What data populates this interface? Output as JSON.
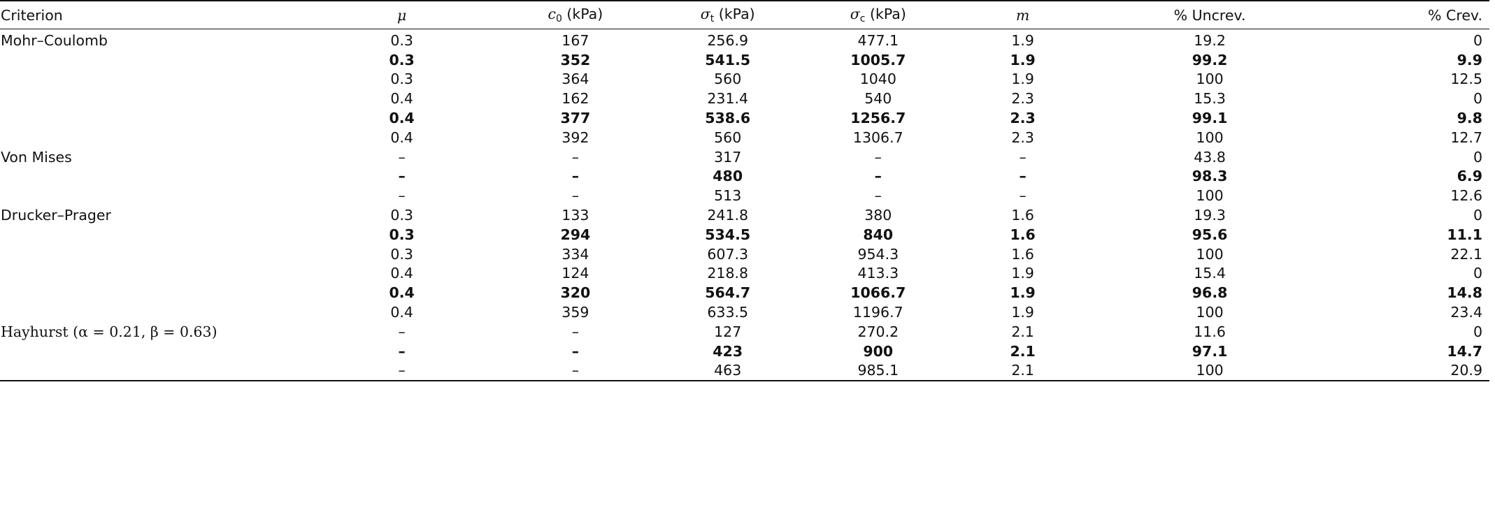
{
  "headers": {
    "criterion": "Criterion",
    "mu": "μ",
    "c0_sym": "c",
    "c0_sub": "0",
    "c0_unit": " (kPa)",
    "sigma_t_sym": "σ",
    "sigma_t_sub": "t",
    "sigma_t_unit": " (kPa)",
    "sigma_c_sym": "σ",
    "sigma_c_sub": "c",
    "sigma_c_unit": " (kPa)",
    "m": "m",
    "uncrev": "% Uncrev.",
    "crev": "% Crev."
  },
  "rows": [
    {
      "criterion": "Mohr–Coulomb",
      "mu": "0.3",
      "c0": "167",
      "st": "256.9",
      "sc": "477.1",
      "m": "1.9",
      "unc": "19.2",
      "crev": "0",
      "bold": false
    },
    {
      "criterion": "",
      "mu": "0.3",
      "c0": "352",
      "st": "541.5",
      "sc": "1005.7",
      "m": "1.9",
      "unc": "99.2",
      "crev": "9.9",
      "bold": true
    },
    {
      "criterion": "",
      "mu": "0.3",
      "c0": "364",
      "st": "560",
      "sc": "1040",
      "m": "1.9",
      "unc": "100",
      "crev": "12.5",
      "bold": false
    },
    {
      "criterion": "",
      "mu": "0.4",
      "c0": "162",
      "st": "231.4",
      "sc": "540",
      "m": "2.3",
      "unc": "15.3",
      "crev": "0",
      "bold": false
    },
    {
      "criterion": "",
      "mu": "0.4",
      "c0": "377",
      "st": "538.6",
      "sc": "1256.7",
      "m": "2.3",
      "unc": "99.1",
      "crev": "9.8",
      "bold": true
    },
    {
      "criterion": "",
      "mu": "0.4",
      "c0": "392",
      "st": "560",
      "sc": "1306.7",
      "m": "2.3",
      "unc": "100",
      "crev": "12.7",
      "bold": false
    },
    {
      "criterion": "Von Mises",
      "mu": "–",
      "c0": "–",
      "st": "317",
      "sc": "–",
      "m": "–",
      "unc": "43.8",
      "crev": "0",
      "bold": false
    },
    {
      "criterion": "",
      "mu": "–",
      "c0": "–",
      "st": "480",
      "sc": "–",
      "m": "–",
      "unc": "98.3",
      "crev": "6.9",
      "bold": true
    },
    {
      "criterion": "",
      "mu": "–",
      "c0": "–",
      "st": "513",
      "sc": "–",
      "m": "–",
      "unc": "100",
      "crev": "12.6",
      "bold": false
    },
    {
      "criterion": "Drucker–Prager",
      "mu": "0.3",
      "c0": "133",
      "st": "241.8",
      "sc": "380",
      "m": "1.6",
      "unc": "19.3",
      "crev": "0",
      "bold": false
    },
    {
      "criterion": "",
      "mu": "0.3",
      "c0": "294",
      "st": "534.5",
      "sc": "840",
      "m": "1.6",
      "unc": "95.6",
      "crev": "11.1",
      "bold": true
    },
    {
      "criterion": "",
      "mu": "0.3",
      "c0": "334",
      "st": "607.3",
      "sc": "954.3",
      "m": "1.6",
      "unc": "100",
      "crev": "22.1",
      "bold": false
    },
    {
      "criterion": "",
      "mu": "0.4",
      "c0": "124",
      "st": "218.8",
      "sc": "413.3",
      "m": "1.9",
      "unc": "15.4",
      "crev": "0",
      "bold": false
    },
    {
      "criterion": "",
      "mu": "0.4",
      "c0": "320",
      "st": "564.7",
      "sc": "1066.7",
      "m": "1.9",
      "unc": "96.8",
      "crev": "14.8",
      "bold": true
    },
    {
      "criterion": "",
      "mu": "0.4",
      "c0": "359",
      "st": "633.5",
      "sc": "1196.7",
      "m": "1.9",
      "unc": "100",
      "crev": "23.4",
      "bold": false
    },
    {
      "criterion": "Hayhurst (α = 0.21, β = 0.63)",
      "mu": "–",
      "c0": "–",
      "st": "127",
      "sc": "270.2",
      "m": "2.1",
      "unc": "11.6",
      "crev": "0",
      "bold": false
    },
    {
      "criterion": "",
      "mu": "–",
      "c0": "–",
      "st": "423",
      "sc": "900",
      "m": "2.1",
      "unc": "97.1",
      "crev": "14.7",
      "bold": true
    },
    {
      "criterion": "",
      "mu": "–",
      "c0": "–",
      "st": "463",
      "sc": "985.1",
      "m": "2.1",
      "unc": "100",
      "crev": "20.9",
      "bold": false
    }
  ]
}
